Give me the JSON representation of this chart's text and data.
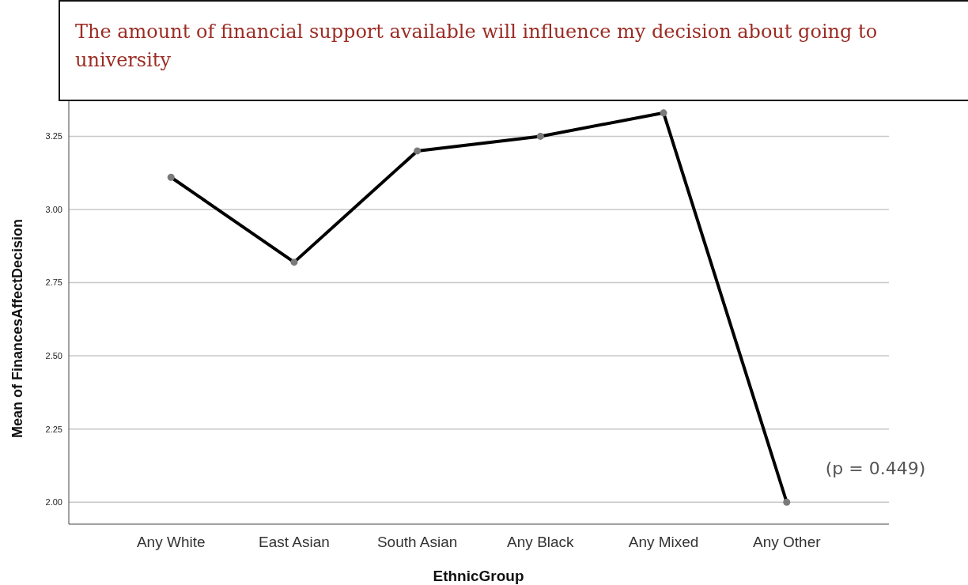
{
  "chart_data": {
    "type": "line",
    "title": "The amount of financial support available will influence my decision about going to university",
    "xlabel": "EthnicGroup",
    "ylabel": "Mean of FinancesAffectDecision",
    "categories": [
      "Any White",
      "East Asian",
      "South Asian",
      "Any Black",
      "Any Mixed",
      "Any Other"
    ],
    "series": [
      {
        "color": "#000000",
        "values": [
          3.11,
          2.82,
          3.2,
          3.25,
          3.33,
          2.0
        ]
      }
    ],
    "ylim": [
      1.925,
      3.37
    ],
    "yticks": [
      {
        "value": 2,
        "label": "2.00"
      },
      {
        "value": 2.25,
        "label": "2.25"
      },
      {
        "value": 2.5,
        "label": "2.50"
      },
      {
        "value": 2.75,
        "label": "2.75"
      },
      {
        "value": 3,
        "label": "3.00"
      },
      {
        "value": 3.25,
        "label": "3.25"
      }
    ],
    "grid": "y",
    "marker": "circle",
    "line_style": "solid",
    "annotations": [
      "(p = 0.449)"
    ]
  }
}
